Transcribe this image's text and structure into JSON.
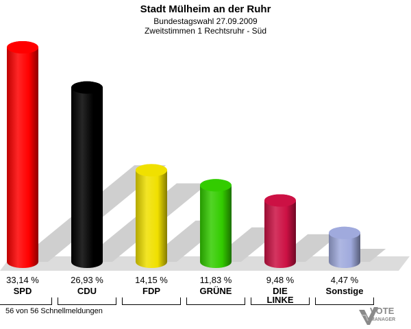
{
  "header": {
    "title": "Stadt Mülheim an der Ruhr",
    "subtitle1": "Bundestagswahl 27.09.2009",
    "subtitle2": "Zweitstimmen 1 Rechtsruhr - Süd"
  },
  "footer": {
    "text": "56 von 56 Schnellmeldungen"
  },
  "logo": {
    "line1": "VOTE",
    "line2": "MANAGER"
  },
  "chart_data": {
    "type": "bar",
    "categories": [
      "SPD",
      "CDU",
      "FDP",
      "GRÜNE",
      "DIE LINKE",
      "Sonstige"
    ],
    "category_lines": [
      [
        "SPD"
      ],
      [
        "CDU"
      ],
      [
        "FDP"
      ],
      [
        "GRÜNE"
      ],
      [
        "DIE",
        "LINKE"
      ],
      [
        "Sonstige"
      ]
    ],
    "values": [
      33.14,
      26.93,
      14.15,
      11.83,
      9.48,
      4.47
    ],
    "value_labels": [
      "33,14 %",
      "26,93 %",
      "14,15 %",
      "11,83 %",
      "9,48 %",
      "4,47 %"
    ],
    "colors": [
      "#ff0000",
      "#000000",
      "#f0e000",
      "#33cc00",
      "#cc1144",
      "#a0aadd"
    ],
    "title": "Stadt Mülheim an der Ruhr",
    "ylim": [
      0,
      33.14
    ],
    "grid": false,
    "legend": "none"
  }
}
